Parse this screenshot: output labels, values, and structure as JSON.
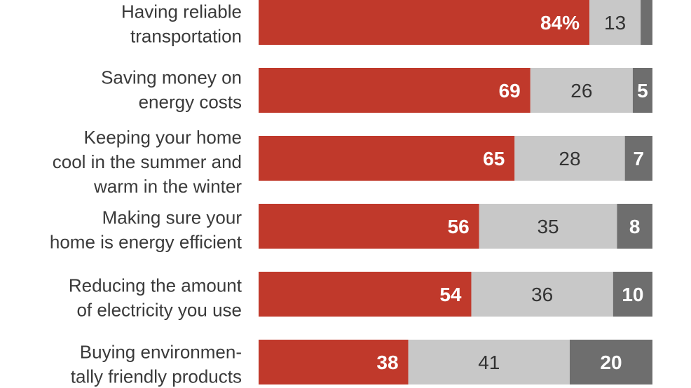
{
  "chart_data": {
    "type": "bar",
    "orientation": "horizontal",
    "stacked": true,
    "categories": [
      [
        "Having reliable",
        "transportation"
      ],
      [
        "Saving money on",
        "energy costs"
      ],
      [
        "Keeping your home",
        "cool in the summer and",
        "warm in the winter"
      ],
      [
        "Making sure your",
        "home is energy efficient"
      ],
      [
        "Reducing the amount",
        "of electricity you use"
      ],
      [
        "Buying environmen-",
        "tally friendly products"
      ]
    ],
    "series": [
      {
        "values": [
          84,
          69,
          65,
          56,
          54,
          38
        ],
        "labels": [
          "84%",
          "69",
          "65",
          "56",
          "54",
          "38"
        ],
        "color": "#c0392b"
      },
      {
        "values": [
          13,
          26,
          28,
          35,
          36,
          41
        ],
        "labels": [
          "13",
          "26",
          "28",
          "35",
          "36",
          "41"
        ],
        "color": "#c8c8c8"
      },
      {
        "values": [
          3,
          5,
          7,
          8,
          10,
          20
        ],
        "labels": [
          "",
          "5",
          "7",
          "8",
          "10",
          "20"
        ],
        "color": "#6e6e6e"
      }
    ],
    "xlim": [
      0,
      100
    ],
    "grid": false,
    "legend": "none"
  }
}
